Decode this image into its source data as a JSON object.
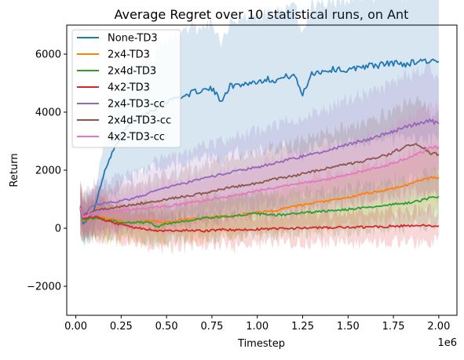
{
  "chart_data": {
    "type": "line",
    "title": "Average Regret over 10 statistical runs, on Ant",
    "xlabel": "Timestep",
    "ylabel": "Return",
    "x_offset_label": "1e6",
    "xlim": [
      -0.05,
      2.1
    ],
    "ylim": [
      -3000,
      7000
    ],
    "x_unit_multiplier": 1000000,
    "xticks": [
      0.0,
      0.25,
      0.5,
      0.75,
      1.0,
      1.25,
      1.5,
      1.75,
      2.0
    ],
    "xtick_labels": [
      "0.00",
      "0.25",
      "0.50",
      "0.75",
      "1.00",
      "1.25",
      "1.50",
      "1.75",
      "2.00"
    ],
    "yticks": [
      -2000,
      0,
      2000,
      4000,
      6000
    ],
    "ytick_labels": [
      "−2000",
      "0",
      "2000",
      "4000",
      "6000"
    ],
    "grid": false,
    "legend_position": "top-left",
    "shaded_band": "spread across the 10 runs (no values printed)",
    "series": [
      {
        "name": "None-TD3",
        "color": "#1f77b4",
        "points": [
          [
            0.025,
            700
          ],
          [
            0.04,
            150
          ],
          [
            0.07,
            350
          ],
          [
            0.1,
            600
          ],
          [
            0.13,
            1300
          ],
          [
            0.16,
            2000
          ],
          [
            0.2,
            2600
          ],
          [
            0.25,
            3200
          ],
          [
            0.3,
            3600
          ],
          [
            0.35,
            3800
          ],
          [
            0.4,
            4000
          ],
          [
            0.45,
            4200
          ],
          [
            0.5,
            4350
          ],
          [
            0.55,
            4500
          ],
          [
            0.6,
            4550
          ],
          [
            0.65,
            4700
          ],
          [
            0.7,
            4750
          ],
          [
            0.75,
            4800
          ],
          [
            0.8,
            4400
          ],
          [
            0.85,
            4900
          ],
          [
            0.9,
            4950
          ],
          [
            0.95,
            5000
          ],
          [
            1.0,
            5050
          ],
          [
            1.05,
            5150
          ],
          [
            1.1,
            5100
          ],
          [
            1.15,
            5200
          ],
          [
            1.2,
            5300
          ],
          [
            1.25,
            4600
          ],
          [
            1.3,
            5350
          ],
          [
            1.35,
            5400
          ],
          [
            1.4,
            5450
          ],
          [
            1.45,
            5500
          ],
          [
            1.5,
            5400
          ],
          [
            1.55,
            5550
          ],
          [
            1.6,
            5600
          ],
          [
            1.65,
            5600
          ],
          [
            1.7,
            5650
          ],
          [
            1.75,
            5700
          ],
          [
            1.8,
            5650
          ],
          [
            1.85,
            5700
          ],
          [
            1.9,
            5800
          ],
          [
            1.95,
            5750
          ],
          [
            2.0,
            5750
          ]
        ]
      },
      {
        "name": "2x4-TD3",
        "color": "#ff7f0e",
        "points": [
          [
            0.025,
            750
          ],
          [
            0.04,
            250
          ],
          [
            0.1,
            400
          ],
          [
            0.2,
            300
          ],
          [
            0.3,
            200
          ],
          [
            0.4,
            250
          ],
          [
            0.5,
            200
          ],
          [
            0.6,
            300
          ],
          [
            0.7,
            350
          ],
          [
            0.8,
            400
          ],
          [
            0.9,
            450
          ],
          [
            1.0,
            550
          ],
          [
            1.1,
            600
          ],
          [
            1.2,
            750
          ],
          [
            1.3,
            850
          ],
          [
            1.4,
            950
          ],
          [
            1.5,
            1050
          ],
          [
            1.6,
            1200
          ],
          [
            1.7,
            1300
          ],
          [
            1.8,
            1450
          ],
          [
            1.9,
            1650
          ],
          [
            1.95,
            1750
          ],
          [
            2.0,
            1750
          ]
        ]
      },
      {
        "name": "2x4d-TD3",
        "color": "#2ca02c",
        "points": [
          [
            0.025,
            700
          ],
          [
            0.04,
            300
          ],
          [
            0.1,
            350
          ],
          [
            0.2,
            250
          ],
          [
            0.3,
            200
          ],
          [
            0.4,
            200
          ],
          [
            0.45,
            50
          ],
          [
            0.5,
            150
          ],
          [
            0.6,
            250
          ],
          [
            0.7,
            350
          ],
          [
            0.8,
            400
          ],
          [
            0.9,
            450
          ],
          [
            1.0,
            500
          ],
          [
            1.1,
            450
          ],
          [
            1.2,
            500
          ],
          [
            1.3,
            550
          ],
          [
            1.4,
            600
          ],
          [
            1.5,
            650
          ],
          [
            1.6,
            700
          ],
          [
            1.7,
            800
          ],
          [
            1.8,
            850
          ],
          [
            1.9,
            950
          ],
          [
            1.95,
            1050
          ],
          [
            2.0,
            1100
          ]
        ]
      },
      {
        "name": "4x2-TD3",
        "color": "#d62728",
        "points": [
          [
            0.025,
            650
          ],
          [
            0.04,
            350
          ],
          [
            0.1,
            400
          ],
          [
            0.2,
            200
          ],
          [
            0.3,
            50
          ],
          [
            0.4,
            -50
          ],
          [
            0.5,
            -100
          ],
          [
            0.6,
            -80
          ],
          [
            0.7,
            -100
          ],
          [
            0.8,
            -50
          ],
          [
            0.9,
            -60
          ],
          [
            1.0,
            -30
          ],
          [
            1.1,
            -20
          ],
          [
            1.2,
            0
          ],
          [
            1.3,
            10
          ],
          [
            1.4,
            20
          ],
          [
            1.5,
            30
          ],
          [
            1.6,
            40
          ],
          [
            1.7,
            60
          ],
          [
            1.8,
            80
          ],
          [
            1.9,
            90
          ],
          [
            2.0,
            80
          ]
        ]
      },
      {
        "name": "2x4-TD3-cc",
        "color": "#9467bd",
        "points": [
          [
            0.025,
            780
          ],
          [
            0.04,
            450
          ],
          [
            0.1,
            800
          ],
          [
            0.2,
            900
          ],
          [
            0.3,
            1000
          ],
          [
            0.4,
            1200
          ],
          [
            0.5,
            1400
          ],
          [
            0.6,
            1550
          ],
          [
            0.7,
            1700
          ],
          [
            0.8,
            1850
          ],
          [
            0.9,
            2000
          ],
          [
            1.0,
            2100
          ],
          [
            1.1,
            2250
          ],
          [
            1.2,
            2400
          ],
          [
            1.3,
            2550
          ],
          [
            1.4,
            2700
          ],
          [
            1.5,
            2900
          ],
          [
            1.6,
            3050
          ],
          [
            1.7,
            3250
          ],
          [
            1.8,
            3450
          ],
          [
            1.9,
            3650
          ],
          [
            1.95,
            3700
          ],
          [
            2.0,
            3600
          ]
        ]
      },
      {
        "name": "2x4d-TD3-cc",
        "color": "#8c564b",
        "points": [
          [
            0.025,
            720
          ],
          [
            0.04,
            400
          ],
          [
            0.1,
            600
          ],
          [
            0.2,
            700
          ],
          [
            0.3,
            800
          ],
          [
            0.4,
            900
          ],
          [
            0.5,
            1000
          ],
          [
            0.6,
            1100
          ],
          [
            0.7,
            1200
          ],
          [
            0.8,
            1350
          ],
          [
            0.9,
            1450
          ],
          [
            1.0,
            1550
          ],
          [
            1.1,
            1700
          ],
          [
            1.2,
            1800
          ],
          [
            1.3,
            1950
          ],
          [
            1.4,
            2100
          ],
          [
            1.5,
            2200
          ],
          [
            1.6,
            2350
          ],
          [
            1.7,
            2500
          ],
          [
            1.8,
            2750
          ],
          [
            1.85,
            2900
          ],
          [
            1.9,
            2850
          ],
          [
            1.95,
            2600
          ],
          [
            2.0,
            2550
          ]
        ]
      },
      {
        "name": "4x2-TD3-cc",
        "color": "#e377c2",
        "points": [
          [
            0.025,
            700
          ],
          [
            0.04,
            380
          ],
          [
            0.1,
            550
          ],
          [
            0.2,
            600
          ],
          [
            0.3,
            650
          ],
          [
            0.4,
            700
          ],
          [
            0.5,
            750
          ],
          [
            0.6,
            850
          ],
          [
            0.7,
            950
          ],
          [
            0.8,
            1050
          ],
          [
            0.9,
            1150
          ],
          [
            1.0,
            1300
          ],
          [
            1.1,
            1400
          ],
          [
            1.2,
            1500
          ],
          [
            1.3,
            1600
          ],
          [
            1.4,
            1700
          ],
          [
            1.5,
            1850
          ],
          [
            1.6,
            2000
          ],
          [
            1.7,
            2150
          ],
          [
            1.8,
            2350
          ],
          [
            1.9,
            2600
          ],
          [
            1.95,
            2750
          ],
          [
            2.0,
            2800
          ]
        ]
      }
    ]
  }
}
